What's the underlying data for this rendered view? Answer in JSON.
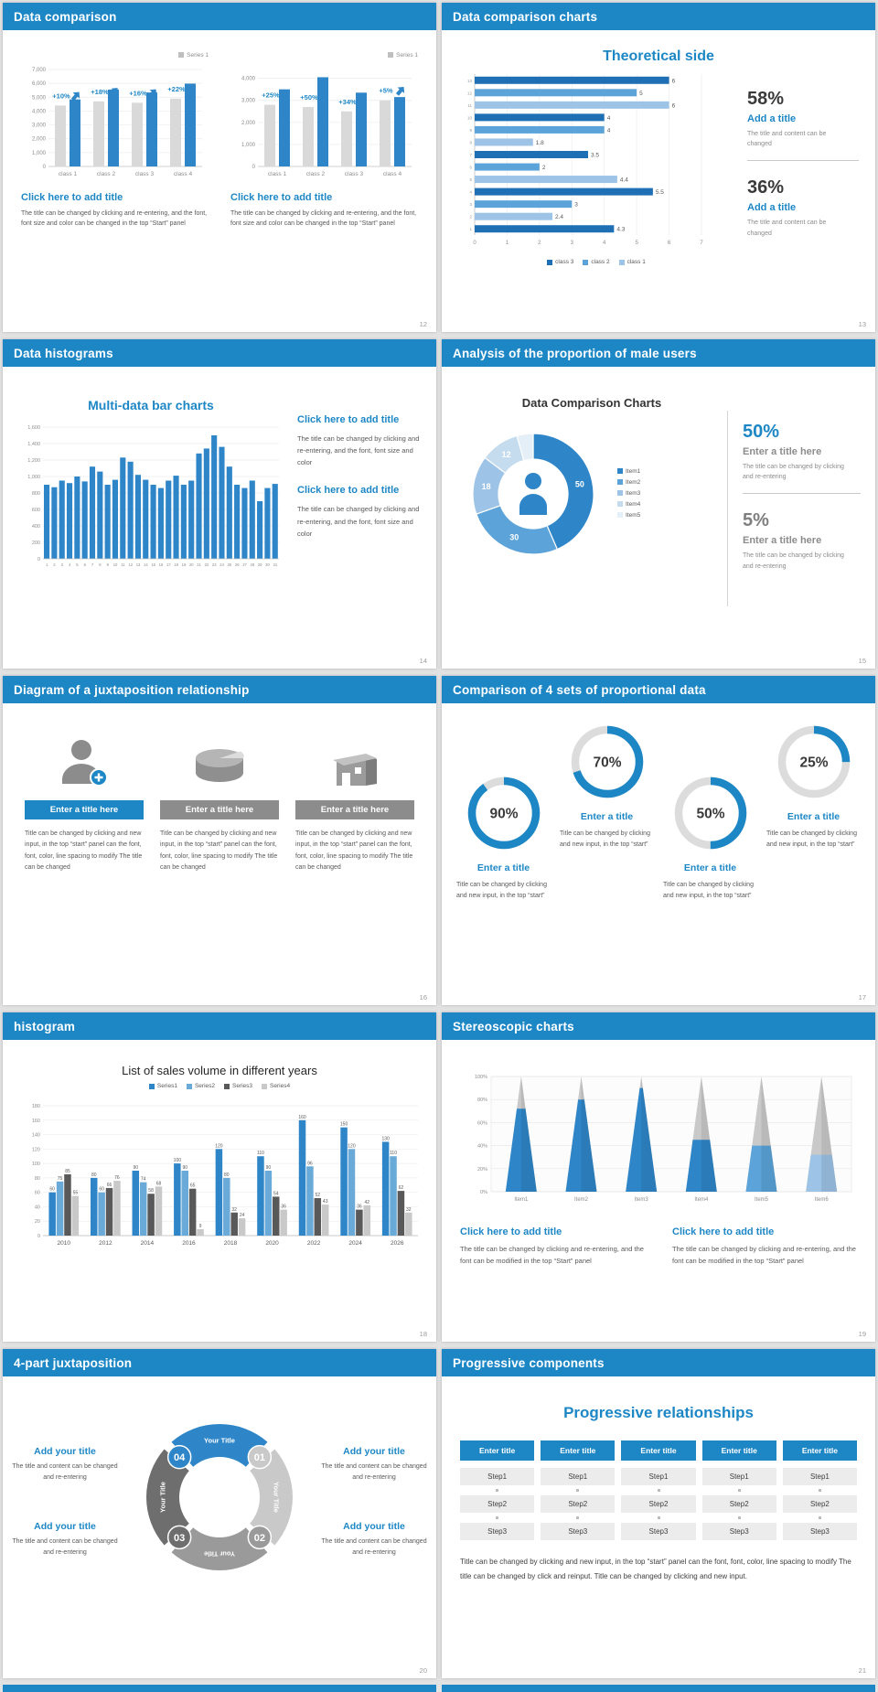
{
  "app": {
    "background": "#e2e2e2",
    "accent_blue": "#1d87c6",
    "slide_header_color": "#1d87c6"
  },
  "slides": [
    {
      "header": "Data comparison",
      "page_number": "12",
      "panels": [
        {
          "legend": "Series 1",
          "legend_color": "#bfbfbf",
          "title": "Click here to add title",
          "body": "The title can be changed by clicking and re-entering, and the font, font size and color can be changed in the top “Start” panel",
          "chart_data": {
            "type": "bar",
            "categories": [
              "class 1",
              "class 2",
              "class 3",
              "class 4"
            ],
            "series": [
              {
                "name": "base",
                "color": "#d9d9d9",
                "values": [
                  4400,
                  4700,
                  4600,
                  4900
                ]
              },
              {
                "name": "Series 1",
                "color": "#2e86c8",
                "values": [
                  4840,
                  5550,
                  5340,
                  5980
                ]
              }
            ],
            "growth_labels": [
              "+10%",
              "+18%",
              "+16%",
              "+22%"
            ],
            "ylim": [
              0,
              7000
            ],
            "yticks": [
              "0",
              "1,000",
              "2,000",
              "3,000",
              "4,000",
              "5,000",
              "6,000",
              "7,000"
            ]
          }
        },
        {
          "legend": "Series 1",
          "legend_color": "#bfbfbf",
          "title": "Click here to add title",
          "body": "The title can be changed by clicking and re-entering, and the font, font size and color can be changed in the top “Start” panel",
          "chart_data": {
            "type": "bar",
            "categories": [
              "class 1",
              "class 2",
              "class 3",
              "class 4"
            ],
            "series": [
              {
                "name": "base",
                "color": "#d9d9d9",
                "values": [
                  2800,
                  2700,
                  2500,
                  3000
                ]
              },
              {
                "name": "Series 1",
                "color": "#2e86c8",
                "values": [
                  3500,
                  4050,
                  3350,
                  3150
                ]
              }
            ],
            "growth_labels": [
              "+25%",
              "+50%",
              "+34%",
              "+5%"
            ],
            "ylim": [
              0,
              4400
            ],
            "yticks": [
              "0",
              "1,000",
              "2,000",
              "3,000",
              "4,000"
            ]
          }
        }
      ]
    },
    {
      "header": "Data comparison charts",
      "page_number": "13",
      "title": "Theoretical side",
      "chart_data": {
        "type": "bar",
        "orientation": "horizontal",
        "values": [
          6,
          5,
          6,
          4,
          4,
          1.8,
          3.5,
          2,
          4.4,
          5.5,
          3,
          2.4,
          4.3
        ],
        "bar_colors": [
          "#1f6fb5",
          "#5ba3d9",
          "#9dc3e6"
        ],
        "xlim": [
          0,
          7
        ],
        "xticks": [
          0,
          1,
          2,
          3,
          4,
          5,
          6,
          7
        ],
        "legend": [
          {
            "label": "class 3",
            "color": "#1f6fb5"
          },
          {
            "label": "class 2",
            "color": "#5ba3d9"
          },
          {
            "label": "class 1",
            "color": "#9dc3e6"
          }
        ]
      },
      "stats": [
        {
          "value": "58%",
          "title": "Add a title",
          "body": "The title and content can be changed"
        },
        {
          "value": "36%",
          "title": "Add a title",
          "body": "The title and content can be changed"
        }
      ]
    },
    {
      "header": "Data histograms",
      "page_number": "14",
      "title": "Multi-data bar charts",
      "chart_data": {
        "type": "bar",
        "categories": [
          "1",
          "2",
          "3",
          "4",
          "5",
          "6",
          "7",
          "8",
          "9",
          "10",
          "11",
          "12",
          "13",
          "14",
          "15",
          "16",
          "17",
          "18",
          "19",
          "20",
          "21",
          "22",
          "23",
          "24",
          "25",
          "26",
          "27",
          "28",
          "29",
          "30",
          "31"
        ],
        "values": [
          900,
          870,
          950,
          920,
          1000,
          940,
          1120,
          1060,
          900,
          960,
          1230,
          1180,
          1020,
          960,
          900,
          860,
          950,
          1010,
          900,
          950,
          1280,
          1340,
          1500,
          1360,
          1120,
          900,
          860,
          950,
          700,
          860,
          910
        ],
        "bar_color": "#2e86c8",
        "ylim": [
          0,
          1600
        ],
        "yticks": [
          "0",
          "200",
          "400",
          "600",
          "800",
          "1,000",
          "1,200",
          "1,400",
          "1,600"
        ]
      },
      "sections": [
        {
          "title": "Click here to add title",
          "body": "The title can be changed by clicking and re-entering, and the font, font size and color"
        },
        {
          "title": "Click here to add title",
          "body": "The title can be changed by clicking and re-entering, and the font, font size and color"
        }
      ]
    },
    {
      "header": "Analysis of the proportion of male users",
      "page_number": "15",
      "title": "Data Comparison Charts",
      "chart_data": {
        "type": "pie",
        "labels": [
          "Item1",
          "Item2",
          "Item3",
          "Item4",
          "Item5"
        ],
        "values": [
          50,
          30,
          18,
          12,
          5
        ],
        "colors": [
          "#2e86c8",
          "#5ba3d9",
          "#9dc3e6",
          "#c5dcef",
          "#e4eff8"
        ],
        "shown_labels": [
          "50",
          "30",
          "18",
          "12",
          ""
        ]
      },
      "legend": [
        {
          "label": "Item1",
          "color": "#2e86c8"
        },
        {
          "label": "Item2",
          "color": "#5ba3d9"
        },
        {
          "label": "Item3",
          "color": "#9dc3e6"
        },
        {
          "label": "Item4",
          "color": "#c5dcef"
        },
        {
          "label": "Item5",
          "color": "#e4eff8"
        }
      ],
      "stats": [
        {
          "value": "50%",
          "title": "Enter a title here",
          "body": "The title can be changed by clicking and re-entering"
        },
        {
          "value": "5%",
          "title": "Enter a title here",
          "body": "The title can be changed by clicking and re-entering"
        }
      ]
    },
    {
      "header": "Diagram of a juxtaposition relationship",
      "page_number": "16",
      "items": [
        {
          "icon": "person-add-icon",
          "title": "Enter a title here",
          "title_bg": "#1d87c6",
          "body": "Title can be changed by clicking and new input, in the top “start” panel can the font, font, color, line spacing to modify The title can be changed"
        },
        {
          "icon": "cake-icon",
          "title": "Enter a title here",
          "title_bg": "#8c8c8c",
          "body": "Title can be changed by clicking and new input, in the top “start” panel can the font, font, color, line spacing to modify The title can be changed"
        },
        {
          "icon": "building-icon",
          "title": "Enter a title here",
          "title_bg": "#8c8c8c",
          "body": "Title can be changed by clicking and new input, in the top “start” panel can the font, font, color, line spacing to modify The title can be changed"
        }
      ]
    },
    {
      "header": "Comparison of 4 sets of proportional data",
      "page_number": "17",
      "chart_data": {
        "type": "pie",
        "kind": "progress-rings",
        "ring_color": "#1d87c6",
        "track_color": "#dcdcdc",
        "items": [
          {
            "percent": 90,
            "label": "90%",
            "title": "Enter a title",
            "body": "Title can be changed by clicking and new input, in the top “start”"
          },
          {
            "percent": 70,
            "label": "70%",
            "title": "Enter a title",
            "body": "Title can be changed by clicking and new input, in the top “start”"
          },
          {
            "percent": 50,
            "label": "50%",
            "title": "Enter a title",
            "body": "Title can be changed by clicking and new input, in the top “start”"
          },
          {
            "percent": 25,
            "label": "25%",
            "title": "Enter a title",
            "body": "Title can be changed by clicking and new input, in the top “start”"
          }
        ]
      }
    },
    {
      "header": "histogram",
      "page_number": "18",
      "title": "List of sales volume in different years",
      "chart_data": {
        "type": "bar",
        "categories": [
          "2010",
          "2012",
          "2014",
          "2016",
          "2018",
          "2020",
          "2022",
          "2024",
          "2026"
        ],
        "series": [
          {
            "name": "Series1",
            "color": "#2e86c8",
            "values": [
              60,
              80,
              90,
              100,
              120,
              110,
              160,
              150,
              130
            ]
          },
          {
            "name": "Series2",
            "color": "#6aaad8",
            "values": [
              75,
              60,
              74,
              90,
              80,
              90,
              96,
              120,
              110
            ]
          },
          {
            "name": "Series3",
            "color": "#595959",
            "values": [
              85,
              66,
              58,
              65,
              32,
              54,
              52,
              36,
              62
            ]
          },
          {
            "name": "Series4",
            "color": "#c9c9c9",
            "values": [
              55,
              76,
              68,
              9,
              24,
              36,
              43,
              42,
              32
            ]
          }
        ],
        "ylim": [
          0,
          180
        ],
        "yticks": [
          0,
          20,
          40,
          60,
          80,
          100,
          120,
          140,
          160,
          180
        ]
      }
    },
    {
      "header": "Stereoscopic charts",
      "page_number": "19",
      "chart_data": {
        "type": "area",
        "kind": "cone",
        "categories": [
          "Item1",
          "Item2",
          "Item3",
          "Item4",
          "Item5",
          "Item6"
        ],
        "filled_percent": [
          72,
          80,
          90,
          45,
          40,
          32
        ],
        "cone_colors": [
          "#2e86c8",
          "#2e86c8",
          "#2e86c8",
          "#2e86c8",
          "#5ba3d9",
          "#9dc3e6"
        ],
        "top_color": "#c9c9c9",
        "yticks": [
          "0%",
          "20%",
          "40%",
          "60%",
          "80%",
          "100%"
        ]
      },
      "sections": [
        {
          "title": "Click here to add title",
          "body": "The title can be changed by clicking and re-entering, and the font can be modified in the top “Start” panel"
        },
        {
          "title": "Click here to add title",
          "body": "The title can be changed by clicking and re-entering, and the font can be modified in the top “Start” panel"
        }
      ]
    },
    {
      "header": "4-part juxtaposition",
      "page_number": "20",
      "chart_data": {
        "type": "pie",
        "kind": "quad-ring",
        "segments": [
          {
            "number": "01",
            "label": "Your Title",
            "color": "#c9c9c9"
          },
          {
            "number": "02",
            "label": "Your Title",
            "color": "#9a9a9a"
          },
          {
            "number": "03",
            "label": "Your Title",
            "color": "#6e6e6e"
          },
          {
            "number": "04",
            "label": "Your Title",
            "color": "#2e86c8"
          }
        ]
      },
      "corners": [
        {
          "title": "Add your title",
          "body": "The title and content can be changed and re-entering"
        },
        {
          "title": "Add your title",
          "body": "The title and content can be changed and re-entering"
        },
        {
          "title": "Add your title",
          "body": "The title and content can be changed and re-entering"
        },
        {
          "title": "Add your title",
          "body": "The title and content can be changed and re-entering"
        }
      ]
    },
    {
      "header": "Progressive components",
      "page_number": "21",
      "title": "Progressive relationships",
      "columns": [
        {
          "header": "Enter title",
          "steps": [
            "Step1",
            "Step2",
            "Step3"
          ]
        },
        {
          "header": "Enter title",
          "steps": [
            "Step1",
            "Step2",
            "Step3"
          ]
        },
        {
          "header": "Enter title",
          "steps": [
            "Step1",
            "Step2",
            "Step3"
          ]
        },
        {
          "header": "Enter title",
          "steps": [
            "Step1",
            "Step2",
            "Step3"
          ]
        },
        {
          "header": "Enter title",
          "steps": [
            "Step1",
            "Step2",
            "Step3"
          ]
        }
      ],
      "body": "Title can be changed by clicking and new input, in the top “start” panel can the font, font, color, line spacing to modify The title can be changed by click and reinput. Title can be changed by clicking and new input."
    }
  ]
}
